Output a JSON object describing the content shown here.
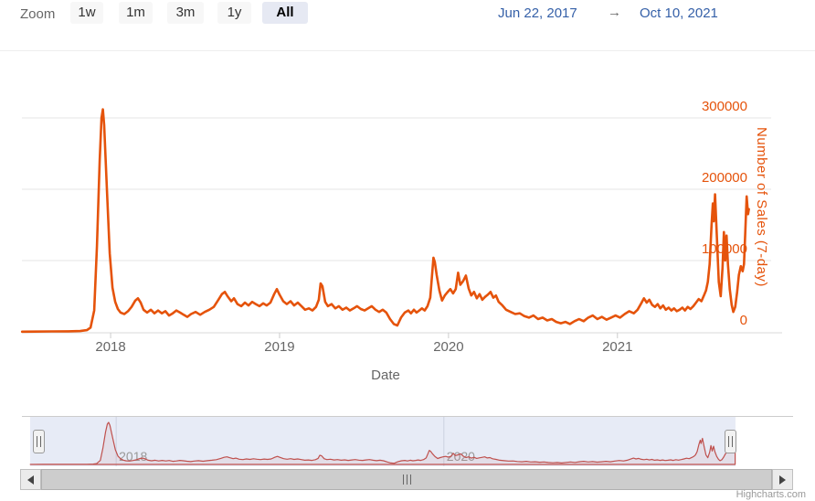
{
  "range_selector": {
    "zoom_label": "Zoom",
    "buttons": [
      {
        "label": "1w",
        "selected": false
      },
      {
        "label": "1m",
        "selected": false
      },
      {
        "label": "3m",
        "selected": false
      },
      {
        "label": "1y",
        "selected": false
      },
      {
        "label": "All",
        "selected": true
      }
    ],
    "date_from": "Jun 22, 2017",
    "arrow": "→",
    "date_to": "Oct 10, 2021"
  },
  "credit": "Highcharts.com",
  "colors": {
    "series_line": "#e5530b",
    "y_axis_text": "#e5530b",
    "axis_text": "#666666",
    "gridline": "#e6e6e6",
    "date_text": "#3560a8",
    "selected_button_bg": "#e6e9f3",
    "button_bg": "#f7f7f7",
    "navigator_mask": "#e7ebf6",
    "navigator_line": "#bf504d",
    "scrollbar": "#cdcdcd"
  },
  "chart_data": {
    "type": "line",
    "title": "",
    "xlabel": "Date",
    "ylabel": "Number of Sales (7-day)",
    "x_range": [
      "Jun 22, 2017",
      "Oct 10, 2021"
    ],
    "ylim": [
      0,
      370000
    ],
    "grid": true,
    "legend": "none",
    "y_ticks": [
      {
        "value": 0,
        "label": "0"
      },
      {
        "value": 100000,
        "label": "100000"
      },
      {
        "value": 200000,
        "label": "200000"
      },
      {
        "value": 300000,
        "label": "300000"
      }
    ],
    "x_ticks": [
      {
        "value": 2018,
        "label": "2018"
      },
      {
        "value": 2019,
        "label": "2019"
      },
      {
        "value": 2020,
        "label": "2020"
      },
      {
        "value": 2021,
        "label": "2021"
      }
    ],
    "navigator_ticks": [
      {
        "value": 2018,
        "label": "2018"
      },
      {
        "value": 2020,
        "label": "2020"
      }
    ],
    "series": [
      {
        "name": "Number of Sales (7-day)",
        "points": [
          [
            2017.476,
            300
          ],
          [
            2017.55,
            400
          ],
          [
            2017.65,
            600
          ],
          [
            2017.75,
            800
          ],
          [
            2017.82,
            1200
          ],
          [
            2017.86,
            2500
          ],
          [
            2017.881,
            6000
          ],
          [
            2017.903,
            30000
          ],
          [
            2017.919,
            120000
          ],
          [
            2017.935,
            240000
          ],
          [
            2017.946,
            300000
          ],
          [
            2017.954,
            312000
          ],
          [
            2017.962,
            290000
          ],
          [
            2017.978,
            200000
          ],
          [
            2017.995,
            110000
          ],
          [
            2018.011,
            62000
          ],
          [
            2018.027,
            42000
          ],
          [
            2018.043,
            32000
          ],
          [
            2018.059,
            27000
          ],
          [
            2018.081,
            25000
          ],
          [
            2018.103,
            29000
          ],
          [
            2018.124,
            35000
          ],
          [
            2018.146,
            44000
          ],
          [
            2018.162,
            47000
          ],
          [
            2018.178,
            41000
          ],
          [
            2018.195,
            31000
          ],
          [
            2018.216,
            27000
          ],
          [
            2018.238,
            31000
          ],
          [
            2018.259,
            26000
          ],
          [
            2018.281,
            30000
          ],
          [
            2018.303,
            26000
          ],
          [
            2018.324,
            29000
          ],
          [
            2018.346,
            23000
          ],
          [
            2018.368,
            26000
          ],
          [
            2018.389,
            30000
          ],
          [
            2018.411,
            27000
          ],
          [
            2018.432,
            24000
          ],
          [
            2018.454,
            21000
          ],
          [
            2018.476,
            25000
          ],
          [
            2018.503,
            28000
          ],
          [
            2018.53,
            24000
          ],
          [
            2018.557,
            28000
          ],
          [
            2018.584,
            31000
          ],
          [
            2018.611,
            35000
          ],
          [
            2018.638,
            45000
          ],
          [
            2018.659,
            53000
          ],
          [
            2018.676,
            56000
          ],
          [
            2018.692,
            50000
          ],
          [
            2018.714,
            43000
          ],
          [
            2018.73,
            47000
          ],
          [
            2018.751,
            39000
          ],
          [
            2018.773,
            36000
          ],
          [
            2018.795,
            41000
          ],
          [
            2018.816,
            37000
          ],
          [
            2018.838,
            42000
          ],
          [
            2018.859,
            39000
          ],
          [
            2018.881,
            36000
          ],
          [
            2018.903,
            40000
          ],
          [
            2018.924,
            37000
          ],
          [
            2018.946,
            41000
          ],
          [
            2018.968,
            53000
          ],
          [
            2018.984,
            60000
          ],
          [
            2019.0,
            52000
          ],
          [
            2019.022,
            43000
          ],
          [
            2019.043,
            39000
          ],
          [
            2019.065,
            43000
          ],
          [
            2019.086,
            37000
          ],
          [
            2019.108,
            41000
          ],
          [
            2019.13,
            36000
          ],
          [
            2019.151,
            31000
          ],
          [
            2019.173,
            33000
          ],
          [
            2019.195,
            30000
          ],
          [
            2019.216,
            35000
          ],
          [
            2019.232,
            45000
          ],
          [
            2019.243,
            68000
          ],
          [
            2019.254,
            64000
          ],
          [
            2019.27,
            42000
          ],
          [
            2019.286,
            36000
          ],
          [
            2019.308,
            39000
          ],
          [
            2019.33,
            33000
          ],
          [
            2019.351,
            36000
          ],
          [
            2019.373,
            31000
          ],
          [
            2019.395,
            34000
          ],
          [
            2019.416,
            30000
          ],
          [
            2019.438,
            33000
          ],
          [
            2019.459,
            36000
          ],
          [
            2019.481,
            32000
          ],
          [
            2019.503,
            30000
          ],
          [
            2019.524,
            33000
          ],
          [
            2019.546,
            36000
          ],
          [
            2019.568,
            31000
          ],
          [
            2019.589,
            28000
          ],
          [
            2019.611,
            31000
          ],
          [
            2019.632,
            27000
          ],
          [
            2019.654,
            18000
          ],
          [
            2019.676,
            11000
          ],
          [
            2019.697,
            9000
          ],
          [
            2019.719,
            20000
          ],
          [
            2019.741,
            27000
          ],
          [
            2019.762,
            30000
          ],
          [
            2019.778,
            26000
          ],
          [
            2019.795,
            31000
          ],
          [
            2019.811,
            27000
          ],
          [
            2019.827,
            30000
          ],
          [
            2019.843,
            33000
          ],
          [
            2019.859,
            30000
          ],
          [
            2019.876,
            36000
          ],
          [
            2019.892,
            48000
          ],
          [
            2019.903,
            80000
          ],
          [
            2019.911,
            104000
          ],
          [
            2019.919,
            98000
          ],
          [
            2019.93,
            80000
          ],
          [
            2019.946,
            58000
          ],
          [
            2019.962,
            44000
          ],
          [
            2019.978,
            51000
          ],
          [
            2019.995,
            56000
          ],
          [
            2020.011,
            60000
          ],
          [
            2020.027,
            54000
          ],
          [
            2020.043,
            60000
          ],
          [
            2020.057,
            83000
          ],
          [
            2020.07,
            66000
          ],
          [
            2020.086,
            71000
          ],
          [
            2020.103,
            79000
          ],
          [
            2020.119,
            61000
          ],
          [
            2020.135,
            51000
          ],
          [
            2020.151,
            56000
          ],
          [
            2020.168,
            47000
          ],
          [
            2020.184,
            53000
          ],
          [
            2020.2,
            45000
          ],
          [
            2020.216,
            49000
          ],
          [
            2020.232,
            52000
          ],
          [
            2020.249,
            56000
          ],
          [
            2020.265,
            48000
          ],
          [
            2020.281,
            51000
          ],
          [
            2020.297,
            42000
          ],
          [
            2020.319,
            37000
          ],
          [
            2020.341,
            31000
          ],
          [
            2020.368,
            28000
          ],
          [
            2020.395,
            25000
          ],
          [
            2020.422,
            26000
          ],
          [
            2020.449,
            22000
          ],
          [
            2020.476,
            20000
          ],
          [
            2020.503,
            23000
          ],
          [
            2020.53,
            18000
          ],
          [
            2020.557,
            20000
          ],
          [
            2020.584,
            16000
          ],
          [
            2020.611,
            18000
          ],
          [
            2020.638,
            14000
          ],
          [
            2020.665,
            12000
          ],
          [
            2020.692,
            14000
          ],
          [
            2020.719,
            11000
          ],
          [
            2020.746,
            15000
          ],
          [
            2020.773,
            18000
          ],
          [
            2020.8,
            15000
          ],
          [
            2020.827,
            20000
          ],
          [
            2020.854,
            23000
          ],
          [
            2020.881,
            18000
          ],
          [
            2020.908,
            21000
          ],
          [
            2020.935,
            17000
          ],
          [
            2020.962,
            20000
          ],
          [
            2020.989,
            23000
          ],
          [
            2021.016,
            20000
          ],
          [
            2021.043,
            25000
          ],
          [
            2021.07,
            29000
          ],
          [
            2021.097,
            26000
          ],
          [
            2021.119,
            31000
          ],
          [
            2021.141,
            40000
          ],
          [
            2021.157,
            47000
          ],
          [
            2021.173,
            41000
          ],
          [
            2021.189,
            45000
          ],
          [
            2021.205,
            38000
          ],
          [
            2021.222,
            35000
          ],
          [
            2021.238,
            39000
          ],
          [
            2021.254,
            33000
          ],
          [
            2021.27,
            37000
          ],
          [
            2021.286,
            31000
          ],
          [
            2021.303,
            34000
          ],
          [
            2021.319,
            30000
          ],
          [
            2021.335,
            33000
          ],
          [
            2021.351,
            29000
          ],
          [
            2021.368,
            31000
          ],
          [
            2021.384,
            34000
          ],
          [
            2021.4,
            30000
          ],
          [
            2021.416,
            35000
          ],
          [
            2021.432,
            32000
          ],
          [
            2021.449,
            36000
          ],
          [
            2021.465,
            41000
          ],
          [
            2021.481,
            46000
          ],
          [
            2021.497,
            43000
          ],
          [
            2021.514,
            52000
          ],
          [
            2021.524,
            58000
          ],
          [
            2021.535,
            70000
          ],
          [
            2021.546,
            95000
          ],
          [
            2021.557,
            150000
          ],
          [
            2021.565,
            180000
          ],
          [
            2021.57,
            155000
          ],
          [
            2021.578,
            193000
          ],
          [
            2021.589,
            130000
          ],
          [
            2021.6,
            70000
          ],
          [
            2021.611,
            50000
          ],
          [
            2021.622,
            90000
          ],
          [
            2021.63,
            140000
          ],
          [
            2021.638,
            100000
          ],
          [
            2021.646,
            135000
          ],
          [
            2021.654,
            95000
          ],
          [
            2021.665,
            60000
          ],
          [
            2021.676,
            38000
          ],
          [
            2021.686,
            28000
          ],
          [
            2021.697,
            35000
          ],
          [
            2021.708,
            55000
          ],
          [
            2021.719,
            80000
          ],
          [
            2021.73,
            92000
          ],
          [
            2021.741,
            85000
          ],
          [
            2021.749,
            95000
          ],
          [
            2021.757,
            140000
          ],
          [
            2021.765,
            190000
          ],
          [
            2021.773,
            165000
          ],
          [
            2021.778,
            172000
          ]
        ]
      }
    ]
  }
}
